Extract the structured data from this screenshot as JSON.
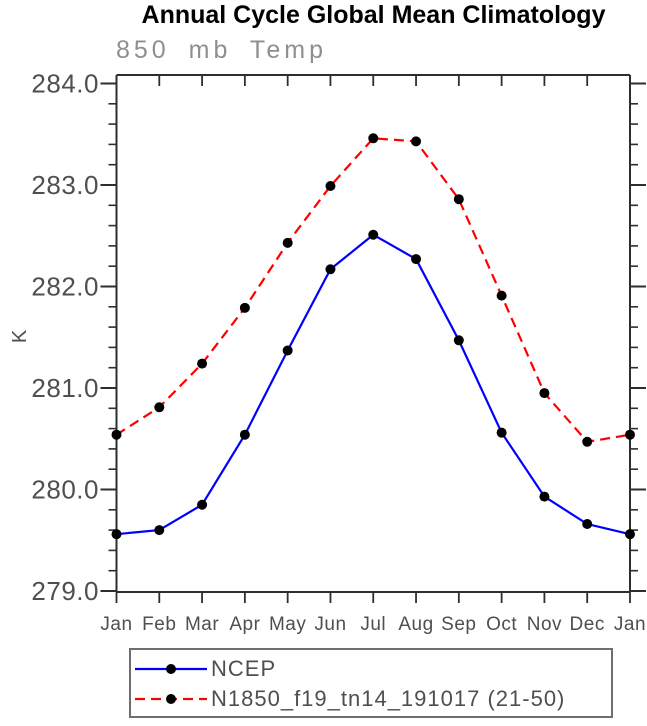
{
  "title": "Annual Cycle Global Mean Climatology",
  "subtitle": "850 mb Temp",
  "y_axis_title": "K",
  "theme": {
    "background": "#ffffff",
    "title_color": "#000000",
    "subtitle_color": "#8f8f8f",
    "axis_color": "#2e2e2e",
    "tick_label_color": "#4f4f4f",
    "marker_color": "#000000",
    "legend_border_color": "#6e6e6e",
    "legend_text_color": "#4f4f4f"
  },
  "chart_data": {
    "type": "line",
    "title": "Annual Cycle Global Mean Climatology",
    "subtitle": "850 mb Temp",
    "xlabel": "",
    "ylabel": "K",
    "categories": [
      "Jan",
      "Feb",
      "Mar",
      "Apr",
      "May",
      "Jun",
      "Jul",
      "Aug",
      "Sep",
      "Oct",
      "Nov",
      "Dec",
      "Jan"
    ],
    "ytick_labels": [
      "284.0",
      "283.0",
      "282.0",
      "281.0",
      "280.0",
      "279.0"
    ],
    "ylim": [
      278.99,
      284.08
    ],
    "yminor_step": 0.2,
    "grid": false,
    "legend_position": "bottom",
    "series": [
      {
        "name": "NCEP",
        "color": "#0000ff",
        "line_style": "solid",
        "marker": "circle",
        "values": [
          279.56,
          279.6,
          279.85,
          280.54,
          281.37,
          282.17,
          282.51,
          282.27,
          281.47,
          280.56,
          279.93,
          279.66,
          279.56
        ]
      },
      {
        "name": "N1850_f19_tn14_191017 (21-50)",
        "color": "#ff0000",
        "line_style": "dashed",
        "marker": "circle",
        "values": [
          280.54,
          280.81,
          281.24,
          281.79,
          282.43,
          282.99,
          283.46,
          283.43,
          282.86,
          281.91,
          280.95,
          280.47,
          280.54
        ]
      }
    ]
  }
}
